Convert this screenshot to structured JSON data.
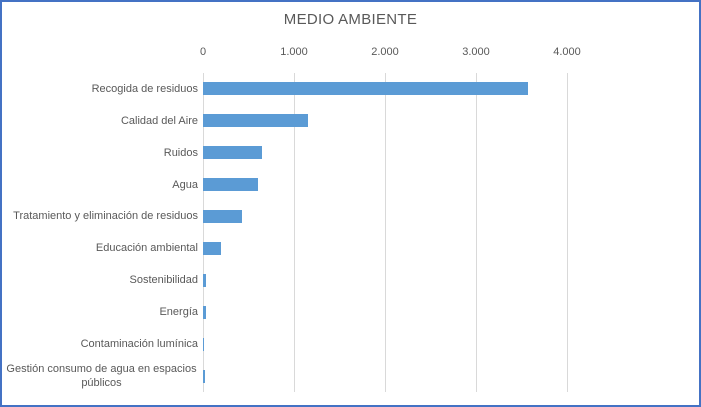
{
  "chart": {
    "title": "MEDIO AMBIENTE"
  },
  "chart_data": {
    "type": "bar",
    "orientation": "horizontal",
    "title": "MEDIO AMBIENTE",
    "categories": [
      "Recogida de residuos",
      "Calidad del Aire",
      "Ruidos",
      "Agua",
      "Tratamiento y eliminación de residuos",
      "Educación ambiental",
      "Sostenibilidad",
      "Energía",
      "Contaminación lumínica",
      "Gestión consumo de agua en espacios públicos"
    ],
    "values": [
      3575,
      1150,
      650,
      605,
      430,
      195,
      35,
      35,
      15,
      20
    ],
    "xlabel": "",
    "ylabel": "",
    "xlim": [
      0,
      4000
    ],
    "xticks": {
      "values": [
        0,
        1000,
        2000,
        3000,
        4000
      ],
      "labels": [
        "0",
        "1.000",
        "2.000",
        "3.000",
        "4.000"
      ]
    },
    "grid": "vertical-gridlines-on",
    "legend": "none",
    "colors": {
      "bar": "#5B9BD5",
      "gridline": "#D9D9D9",
      "text": "#595959",
      "chart_border": "#4472C4",
      "background": "#FFFFFF"
    }
  }
}
